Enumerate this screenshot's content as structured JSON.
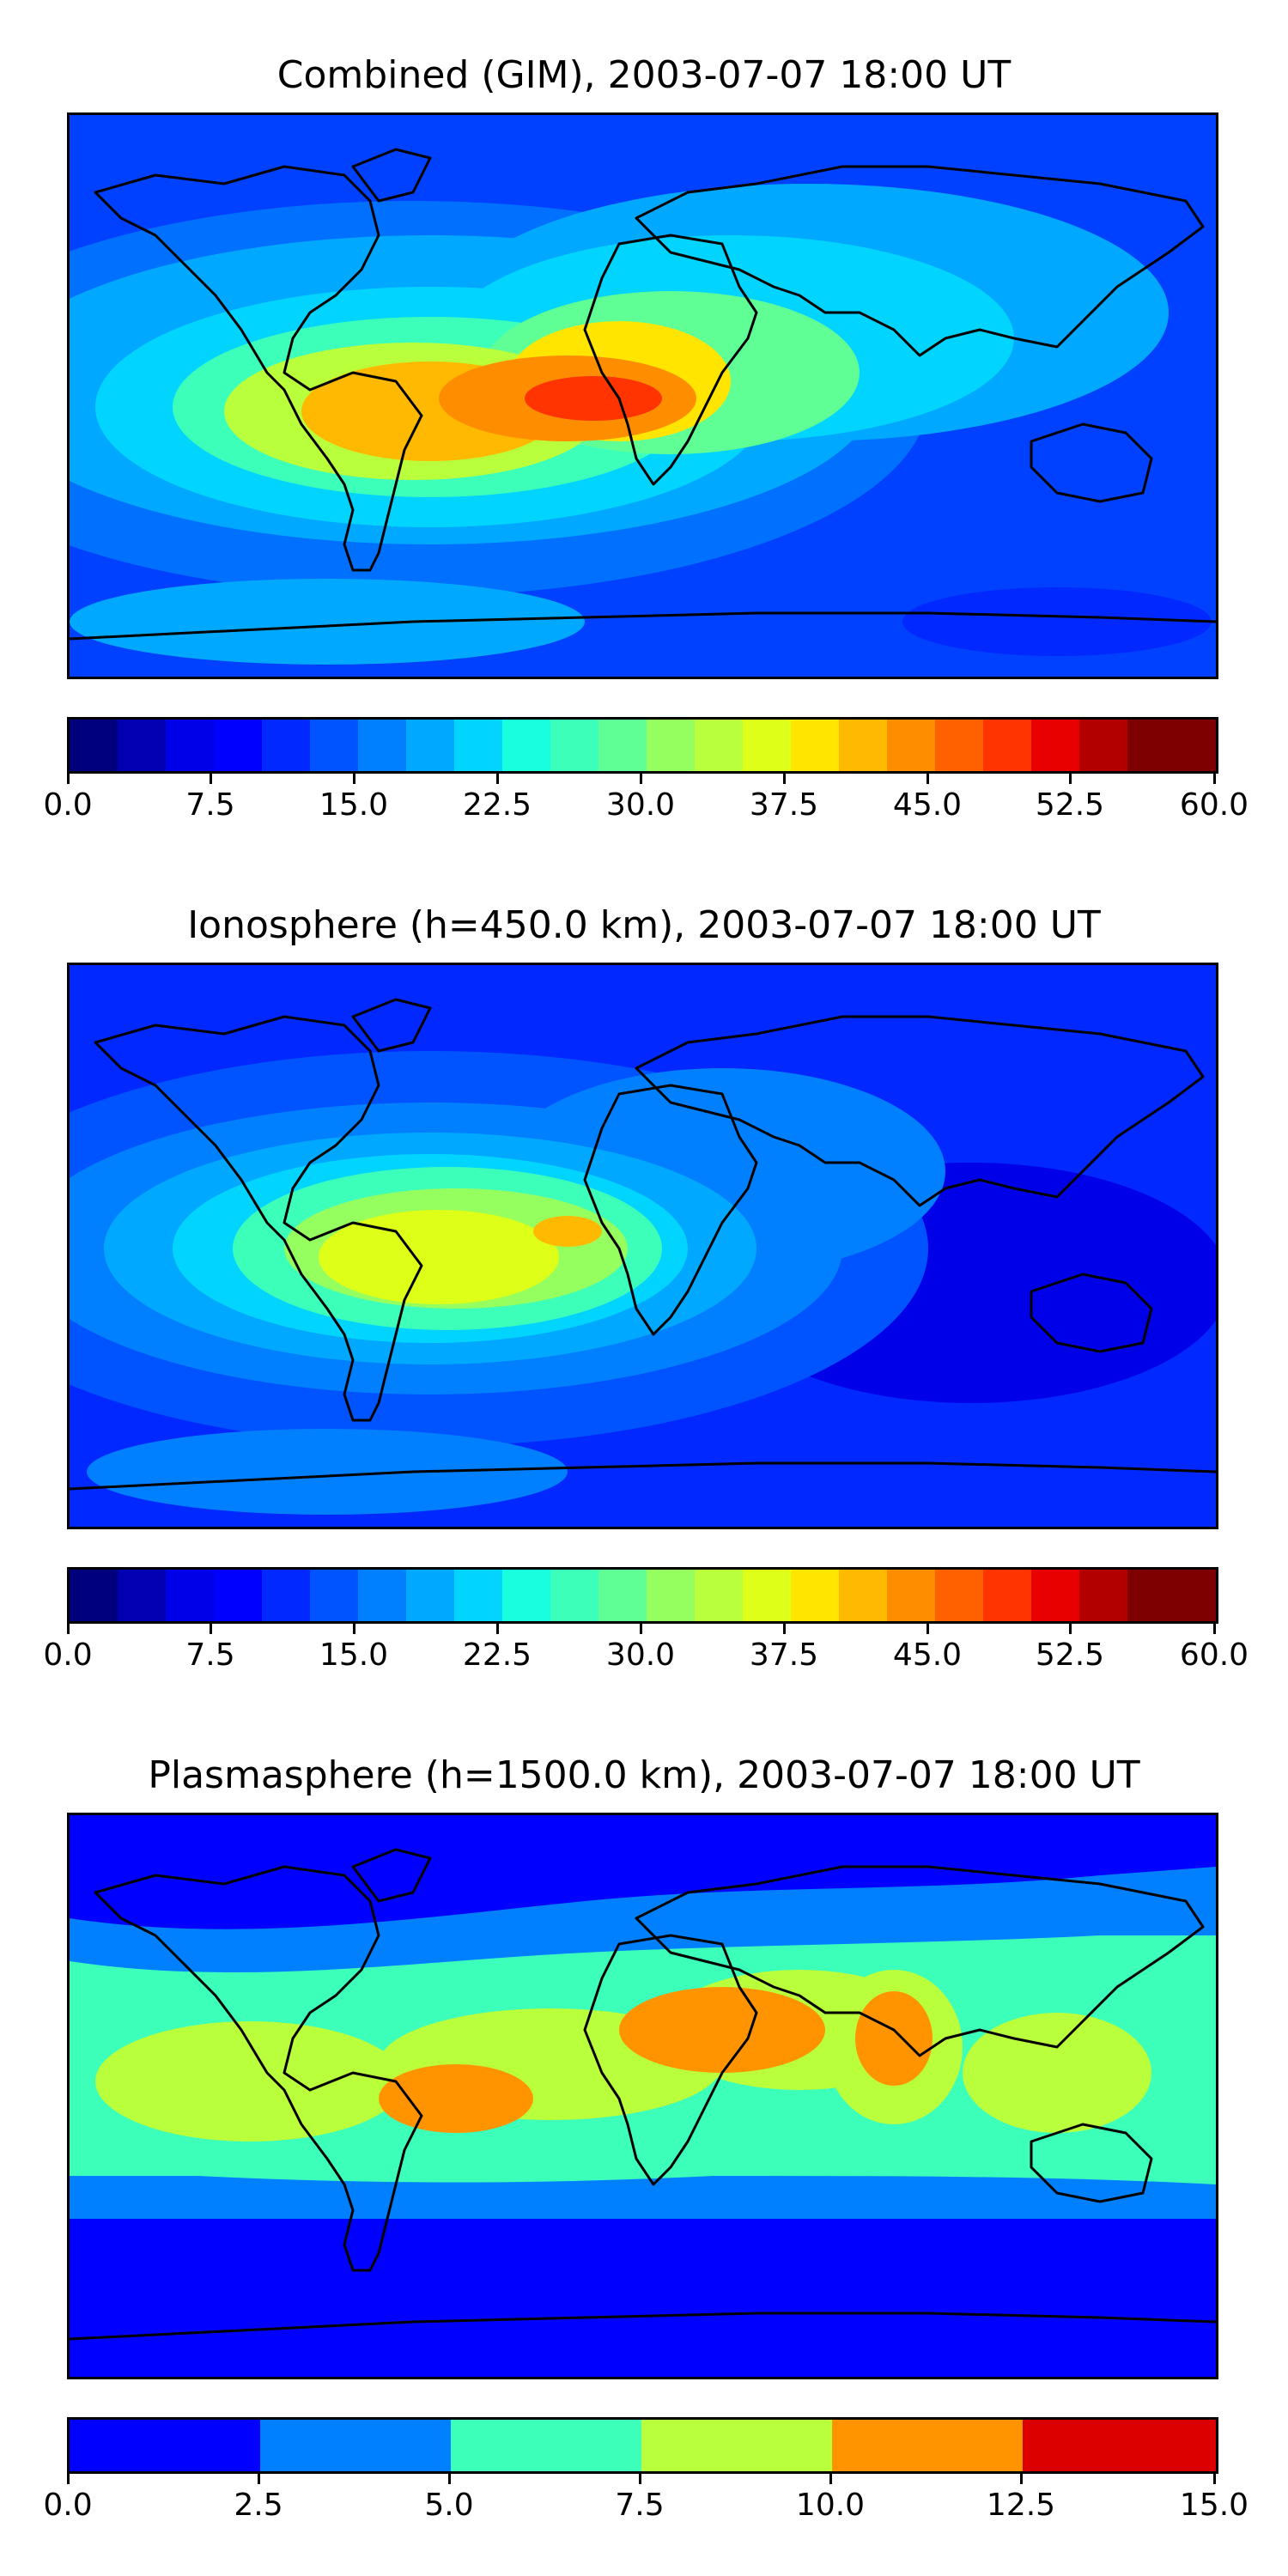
{
  "panels": [
    {
      "title": "Combined (GIM), 2003-07-07 18:00 UT",
      "colorbar_min": 0.0,
      "colorbar_max": 60.0,
      "levels": 20,
      "tick_labels": [
        "0.0",
        "7.5",
        "15.0",
        "22.5",
        "30.0",
        "37.5",
        "45.0",
        "52.5",
        "60.0"
      ],
      "palette": [
        "#00007f",
        "#0000b2",
        "#0000e8",
        "#0000ff",
        "#0028ff",
        "#0054ff",
        "#0080ff",
        "#00a8ff",
        "#00d4ff",
        "#18ffdd",
        "#3cffba",
        "#60ff96",
        "#96ff60",
        "#baff3c",
        "#ddff18",
        "#ffe500",
        "#ffb900",
        "#ff8d00",
        "#ff6100",
        "#ff3400",
        "#e80000",
        "#b20000",
        "#7f0000"
      ]
    },
    {
      "title": "Ionosphere  (h=450.0 km), 2003-07-07 18:00 UT",
      "colorbar_min": 0.0,
      "colorbar_max": 60.0,
      "levels": 20,
      "tick_labels": [
        "0.0",
        "7.5",
        "15.0",
        "22.5",
        "30.0",
        "37.5",
        "45.0",
        "52.5",
        "60.0"
      ],
      "palette": [
        "#00007f",
        "#0000b2",
        "#0000e8",
        "#0000ff",
        "#0028ff",
        "#0054ff",
        "#0080ff",
        "#00a8ff",
        "#00d4ff",
        "#18ffdd",
        "#3cffba",
        "#60ff96",
        "#96ff60",
        "#baff3c",
        "#ddff18",
        "#ffe500",
        "#ffb900",
        "#ff8d00",
        "#ff6100",
        "#ff3400",
        "#e80000",
        "#b20000",
        "#7f0000"
      ]
    },
    {
      "title": "Plasmasphere (h=1500.0 km), 2003-07-07 18:00 UT",
      "colorbar_min": 0.0,
      "colorbar_max": 15.0,
      "levels": 6,
      "tick_labels": [
        "0.0",
        "2.5",
        "5.0",
        "7.5",
        "10.0",
        "12.5",
        "15.0"
      ],
      "palette": [
        "#0000ff",
        "#0080ff",
        "#3cffba",
        "#baff3c",
        "#ff9400",
        "#dc0000"
      ]
    }
  ]
}
